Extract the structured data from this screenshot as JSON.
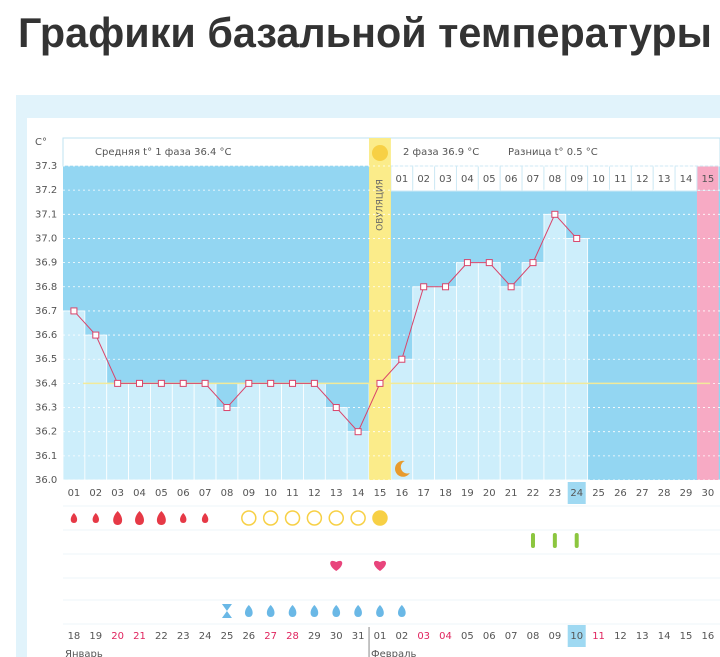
{
  "header": {
    "title": "Графики базальной температуры"
  },
  "chart_data": {
    "type": "line",
    "y_label": "C°",
    "phase1_text": "Средняя t° 1 фаза 36.4 °C",
    "phase2_text": "2 фаза 36.9 °C",
    "difference_text": "Разница t° 0.5 °C",
    "ovulation_label": "ОВУЛЯЦИЯ",
    "ovulation_day": 15,
    "next_period_day": 30,
    "current_day": 24,
    "categories": [
      "01",
      "02",
      "03",
      "04",
      "05",
      "06",
      "07",
      "08",
      "09",
      "10",
      "11",
      "12",
      "13",
      "14",
      "15",
      "16",
      "17",
      "18",
      "19",
      "20",
      "21",
      "22",
      "23",
      "24",
      "25",
      "26",
      "27",
      "28",
      "29",
      "30"
    ],
    "values": [
      36.7,
      36.6,
      36.4,
      36.4,
      36.4,
      36.4,
      36.4,
      36.3,
      36.4,
      36.4,
      36.4,
      36.4,
      36.3,
      36.2,
      36.4,
      36.5,
      36.8,
      36.8,
      36.9,
      36.9,
      36.8,
      36.9,
      37.1,
      37.0,
      null,
      null,
      null,
      null,
      null,
      null
    ],
    "cover_line": 36.4,
    "ylim": [
      36.0,
      37.3
    ],
    "yticks": [
      36.1,
      36.2,
      36.3,
      36.4,
      36.5,
      36.6,
      36.7,
      36.8,
      36.9,
      {
        "value": 37,
        "label": "37.0"
      },
      37.1,
      37.2,
      37.3,
      {
        "value": 36,
        "label": "36.0"
      }
    ],
    "grid": true,
    "phase2_days": [
      "01",
      "02",
      "03",
      "04",
      "05",
      "06",
      "07",
      "08",
      "09",
      "10",
      "11",
      "12",
      "13",
      "14",
      "15"
    ],
    "dates": [
      "18",
      "19",
      "20",
      "21",
      "22",
      "23",
      "24",
      "25",
      "26",
      "27",
      "28",
      "29",
      "30",
      "31",
      "01",
      "02",
      "03",
      "04",
      "05",
      "06",
      "07",
      "08",
      "09",
      "10",
      "11",
      "12",
      "13",
      "14",
      "15",
      "16"
    ],
    "weekend": [
      false,
      false,
      true,
      true,
      false,
      false,
      false,
      false,
      false,
      true,
      true,
      false,
      false,
      false,
      false,
      false,
      true,
      true,
      false,
      false,
      false,
      false,
      false,
      false,
      true,
      false,
      false,
      false,
      false,
      false
    ],
    "months": [
      "Январь",
      "Февраль"
    ],
    "bleeding": [
      "light",
      "light",
      "heavy",
      "heavy",
      "heavy",
      "light",
      "light",
      null,
      null,
      null,
      null,
      null,
      null,
      null,
      null,
      null,
      null,
      null,
      null,
      null,
      null,
      null,
      null,
      null,
      null,
      null,
      null,
      null,
      null,
      null
    ],
    "tests": [
      null,
      null,
      null,
      null,
      null,
      null,
      null,
      null,
      "negative",
      "negative",
      "negative",
      "negative",
      "negative",
      "negative",
      "positive",
      null,
      null,
      null,
      null,
      null,
      null,
      null,
      null,
      null,
      null,
      null,
      null,
      null,
      null,
      null
    ],
    "green_marks": [
      null,
      null,
      null,
      null,
      null,
      null,
      null,
      null,
      null,
      null,
      null,
      null,
      null,
      null,
      null,
      null,
      null,
      null,
      null,
      null,
      null,
      true,
      true,
      true,
      null,
      null,
      null,
      null,
      null,
      null
    ],
    "hearts": [
      null,
      null,
      null,
      null,
      null,
      null,
      null,
      null,
      null,
      null,
      null,
      null,
      true,
      null,
      true,
      null,
      null,
      null,
      null,
      null,
      null,
      null,
      null,
      null,
      null,
      null,
      null,
      null,
      null,
      null
    ],
    "mucus": [
      null,
      null,
      null,
      null,
      null,
      null,
      null,
      "hourglass",
      "drop",
      "drop",
      "drop",
      "drop",
      "drop",
      "drop",
      "drop",
      "drop",
      null,
      null,
      null,
      null,
      null,
      null,
      null,
      null,
      null,
      null,
      null,
      null,
      null,
      null
    ],
    "colors": {
      "background": "#93d6f2",
      "bar": "#cdeefb",
      "line": "#d9446a",
      "ovulation": "#fbec8a",
      "next_period": "#f7aac4",
      "cover_line": "#f2ea9a",
      "blood": "#e63946",
      "test": "#f7d045",
      "green": "#8cc63f",
      "heart": "#e8457c",
      "mucus": "#6ab8e6",
      "current": "#9fd9f2",
      "weekend": "#e0245e"
    }
  }
}
